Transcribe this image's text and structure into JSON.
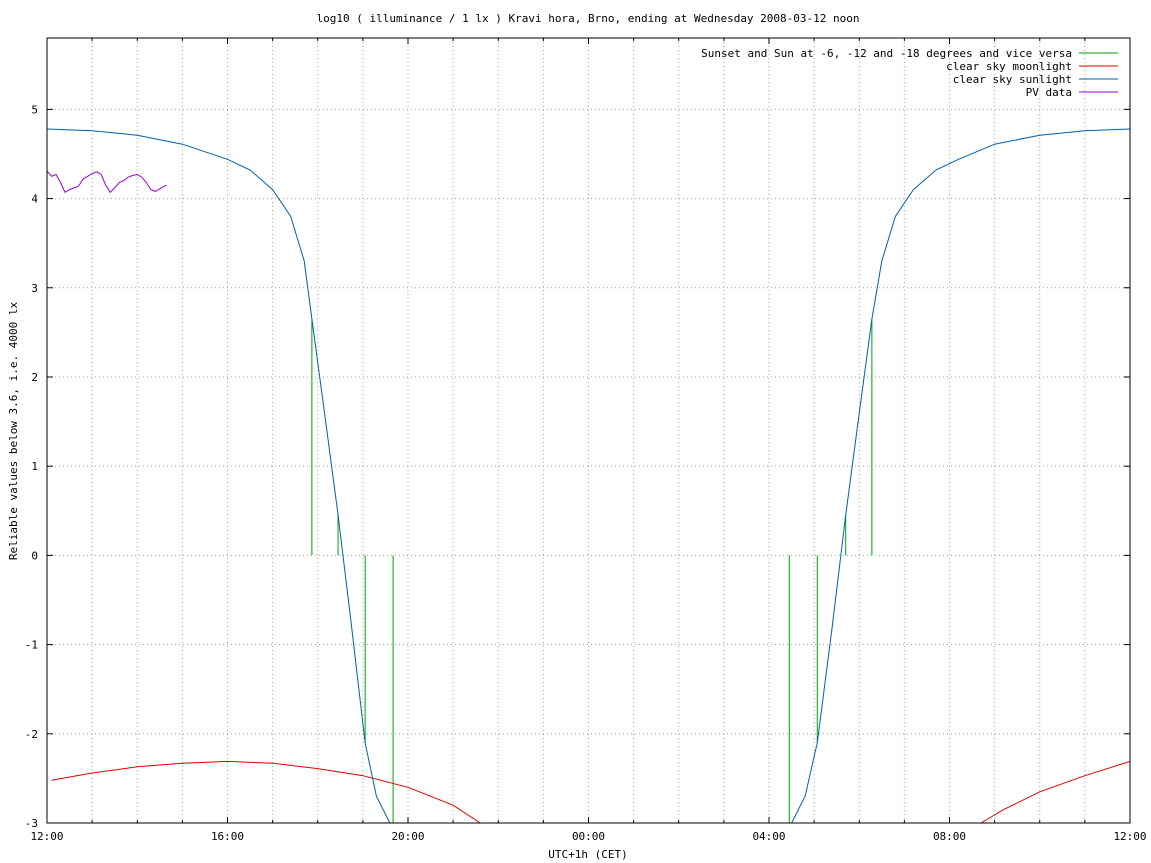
{
  "chart_data": {
    "type": "line",
    "title": "log10 ( illuminance / 1 lx ) Kravi hora, Brno, ending at Wednesday 2008-03-12 noon",
    "xlabel": "UTC+1h (CET)",
    "ylabel": "Reliable values below 3.6, i.e. 4000 lx",
    "x_unit": "hours since 12:00",
    "xlim": [
      0,
      24
    ],
    "ylim": [
      -3,
      5.8
    ],
    "x_ticks": [
      {
        "x": 0,
        "label": "12:00"
      },
      {
        "x": 4,
        "label": "16:00"
      },
      {
        "x": 8,
        "label": "20:00"
      },
      {
        "x": 12,
        "label": "00:00"
      },
      {
        "x": 16,
        "label": "04:00"
      },
      {
        "x": 20,
        "label": "08:00"
      },
      {
        "x": 24,
        "label": "12:00"
      }
    ],
    "x_minor_grid_step": 1,
    "y_ticks": [
      {
        "y": 5,
        "label": "5"
      },
      {
        "y": 4,
        "label": "4"
      },
      {
        "y": 3,
        "label": "3"
      },
      {
        "y": 2,
        "label": "2"
      },
      {
        "y": 1,
        "label": "1"
      },
      {
        "y": 0,
        "label": "0"
      },
      {
        "y": -1,
        "label": "-1"
      },
      {
        "y": -2,
        "label": "-2"
      },
      {
        "y": -3,
        "label": "-3"
      }
    ],
    "grid": true,
    "legend_position": "top-right",
    "series": [
      {
        "name": "Sunset and Sun at -6, -12 and -18 degrees and vice versa",
        "kind": "impulses",
        "color": "#00a000",
        "points": [
          {
            "x": 5.87,
            "y": 2.65
          },
          {
            "x": 6.45,
            "y": 0.45
          },
          {
            "x": 7.05,
            "y": -2.1
          },
          {
            "x": 7.67,
            "y": -3.0
          },
          {
            "x": 16.45,
            "y": -3.0
          },
          {
            "x": 17.07,
            "y": -2.1
          },
          {
            "x": 17.7,
            "y": 0.45
          },
          {
            "x": 18.28,
            "y": 2.65
          }
        ]
      },
      {
        "name": "clear sky moonlight",
        "kind": "line",
        "color": "#e00000",
        "points": [
          {
            "x": 0.1,
            "y": -2.52
          },
          {
            "x": 1.0,
            "y": -2.44
          },
          {
            "x": 2.0,
            "y": -2.37
          },
          {
            "x": 3.0,
            "y": -2.33
          },
          {
            "x": 4.0,
            "y": -2.31
          },
          {
            "x": 5.0,
            "y": -2.33
          },
          {
            "x": 6.0,
            "y": -2.39
          },
          {
            "x": 7.0,
            "y": -2.47
          },
          {
            "x": 8.0,
            "y": -2.6
          },
          {
            "x": 9.0,
            "y": -2.8
          },
          {
            "x": 9.6,
            "y": -3.0
          },
          {
            "x": 20.7,
            "y": -3.0
          },
          {
            "x": 21.2,
            "y": -2.85
          },
          {
            "x": 22.0,
            "y": -2.65
          },
          {
            "x": 23.0,
            "y": -2.47
          },
          {
            "x": 24.0,
            "y": -2.31
          }
        ]
      },
      {
        "name": "clear sky sunlight",
        "kind": "line",
        "color": "#0060ad",
        "points": [
          {
            "x": 0.0,
            "y": 4.78
          },
          {
            "x": 1.0,
            "y": 4.76
          },
          {
            "x": 2.0,
            "y": 4.71
          },
          {
            "x": 3.0,
            "y": 4.61
          },
          {
            "x": 4.0,
            "y": 4.44
          },
          {
            "x": 4.5,
            "y": 4.32
          },
          {
            "x": 5.0,
            "y": 4.1
          },
          {
            "x": 5.4,
            "y": 3.8
          },
          {
            "x": 5.7,
            "y": 3.3
          },
          {
            "x": 5.87,
            "y": 2.65
          },
          {
            "x": 6.15,
            "y": 1.6
          },
          {
            "x": 6.45,
            "y": 0.45
          },
          {
            "x": 6.75,
            "y": -0.8
          },
          {
            "x": 7.05,
            "y": -2.1
          },
          {
            "x": 7.3,
            "y": -2.7
          },
          {
            "x": 7.6,
            "y": -3.0
          },
          {
            "x": 16.5,
            "y": -3.0
          },
          {
            "x": 16.8,
            "y": -2.7
          },
          {
            "x": 17.07,
            "y": -2.1
          },
          {
            "x": 17.4,
            "y": -0.8
          },
          {
            "x": 17.7,
            "y": 0.45
          },
          {
            "x": 18.0,
            "y": 1.6
          },
          {
            "x": 18.28,
            "y": 2.65
          },
          {
            "x": 18.5,
            "y": 3.3
          },
          {
            "x": 18.8,
            "y": 3.8
          },
          {
            "x": 19.2,
            "y": 4.1
          },
          {
            "x": 19.7,
            "y": 4.32
          },
          {
            "x": 20.2,
            "y": 4.44
          },
          {
            "x": 21.0,
            "y": 4.61
          },
          {
            "x": 22.0,
            "y": 4.71
          },
          {
            "x": 23.0,
            "y": 4.76
          },
          {
            "x": 24.0,
            "y": 4.78
          }
        ]
      },
      {
        "name": "PV data",
        "kind": "line",
        "color": "#9400d3",
        "points": [
          {
            "x": 0.0,
            "y": 4.31
          },
          {
            "x": 0.1,
            "y": 4.25
          },
          {
            "x": 0.2,
            "y": 4.27
          },
          {
            "x": 0.3,
            "y": 4.18
          },
          {
            "x": 0.4,
            "y": 4.07
          },
          {
            "x": 0.5,
            "y": 4.1
          },
          {
            "x": 0.6,
            "y": 4.12
          },
          {
            "x": 0.7,
            "y": 4.14
          },
          {
            "x": 0.8,
            "y": 4.22
          },
          {
            "x": 0.9,
            "y": 4.25
          },
          {
            "x": 1.0,
            "y": 4.28
          },
          {
            "x": 1.1,
            "y": 4.3
          },
          {
            "x": 1.2,
            "y": 4.27
          },
          {
            "x": 1.3,
            "y": 4.15
          },
          {
            "x": 1.4,
            "y": 4.07
          },
          {
            "x": 1.5,
            "y": 4.12
          },
          {
            "x": 1.6,
            "y": 4.18
          },
          {
            "x": 1.7,
            "y": 4.2
          },
          {
            "x": 1.8,
            "y": 4.24
          },
          {
            "x": 1.9,
            "y": 4.26
          },
          {
            "x": 2.0,
            "y": 4.27
          },
          {
            "x": 2.1,
            "y": 4.24
          },
          {
            "x": 2.2,
            "y": 4.18
          },
          {
            "x": 2.3,
            "y": 4.1
          },
          {
            "x": 2.4,
            "y": 4.08
          },
          {
            "x": 2.5,
            "y": 4.11
          },
          {
            "x": 2.6,
            "y": 4.14
          },
          {
            "x": 2.65,
            "y": 4.15
          }
        ]
      }
    ]
  }
}
